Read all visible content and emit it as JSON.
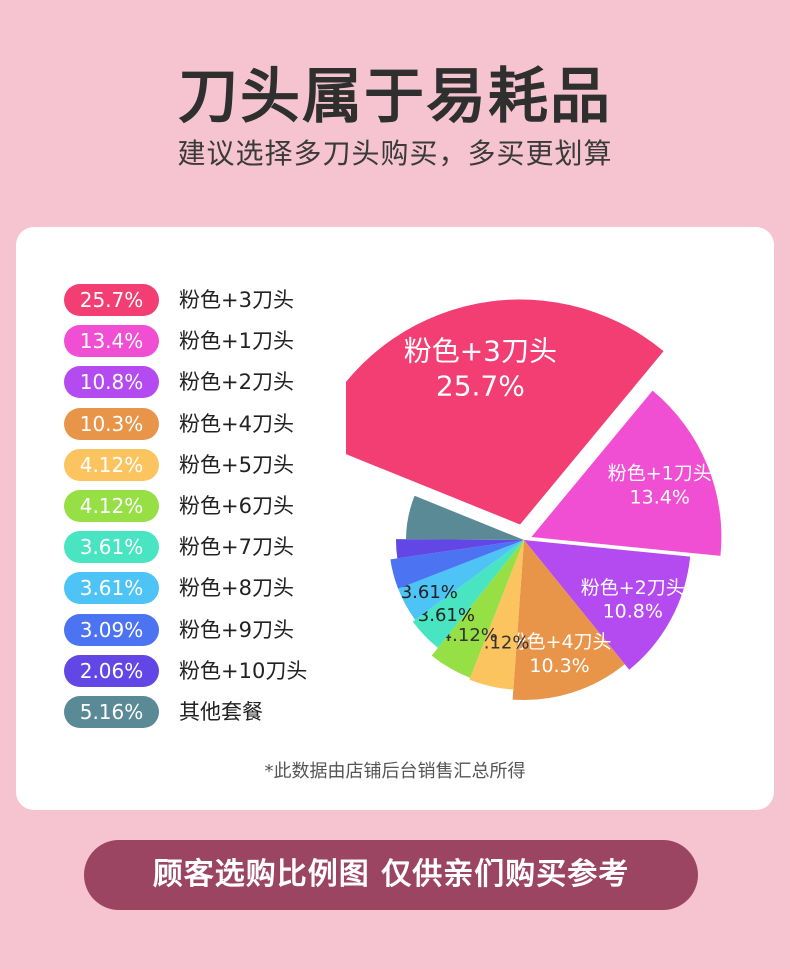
{
  "header": {
    "title": "刀头属于易耗品",
    "subtitle": "建议选择多刀头购买，多买更划算"
  },
  "chart_data": {
    "type": "pie",
    "title": "",
    "categories": [
      "粉色+3刀头",
      "粉色+1刀头",
      "粉色+2刀头",
      "粉色+4刀头",
      "粉色+5刀头",
      "粉色+6刀头",
      "粉色+7刀头",
      "粉色+8刀头",
      "粉色+9刀头",
      "粉色+10刀头",
      "其他套餐"
    ],
    "values": [
      25.7,
      13.4,
      10.8,
      10.3,
      4.12,
      4.12,
      3.61,
      3.61,
      3.09,
      2.06,
      5.16
    ],
    "value_labels": [
      "25.7%",
      "13.4%",
      "10.8%",
      "10.3%",
      "4.12%",
      "4.12%",
      "3.61%",
      "3.61%",
      "3.09%",
      "2.06%",
      "5.16%"
    ],
    "colors": [
      "#f23e72",
      "#f04fd3",
      "#b44bf0",
      "#e8954a",
      "#fcc45f",
      "#96df44",
      "#49e4c2",
      "#4ec4f6",
      "#4b73f2",
      "#6346e6",
      "#5a8a96"
    ],
    "legend_position": "left"
  },
  "note": "*此数据由店铺后台销售汇总所得",
  "banner": "顾客选购比例图  仅供亲们购买参考"
}
